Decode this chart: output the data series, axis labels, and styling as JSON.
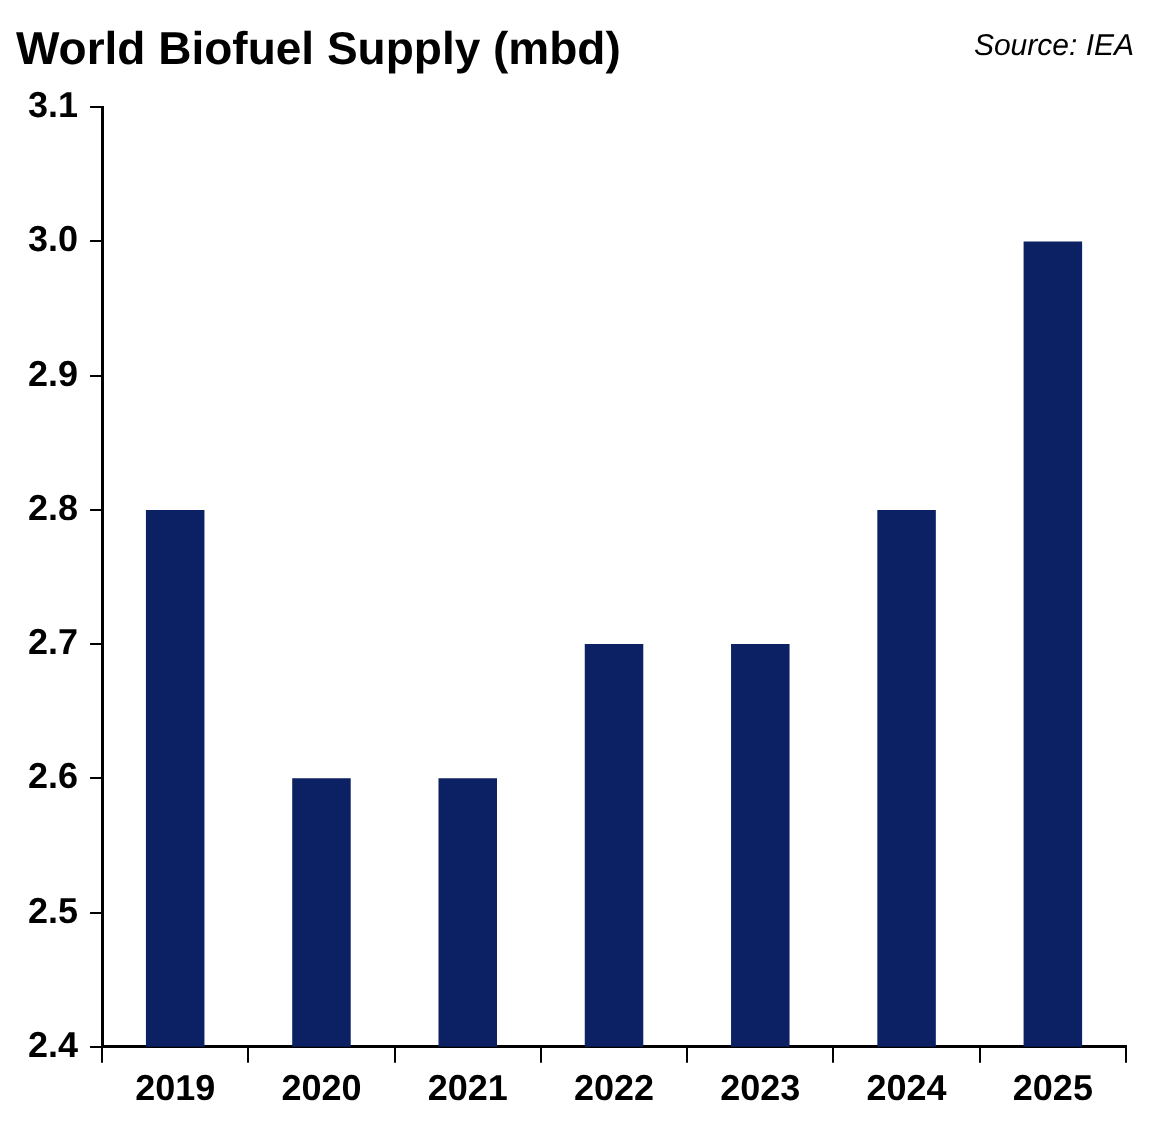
{
  "chart_data": {
    "type": "bar",
    "title": "World Biofuel Supply (mbd)",
    "annotations": [
      "Source: IEA"
    ],
    "categories": [
      "2019",
      "2020",
      "2021",
      "2022",
      "2023",
      "2024",
      "2025"
    ],
    "values": [
      2.8,
      2.6,
      2.6,
      2.7,
      2.7,
      2.8,
      3.0
    ],
    "color": "#0b2163",
    "ylim": [
      2.4,
      3.1
    ],
    "yticks": [
      2.4,
      2.5,
      2.6,
      2.7,
      2.8,
      2.9,
      {
        "value": 3,
        "label": "3.0"
      },
      3.1
    ],
    "grid": false,
    "legend": false
  }
}
